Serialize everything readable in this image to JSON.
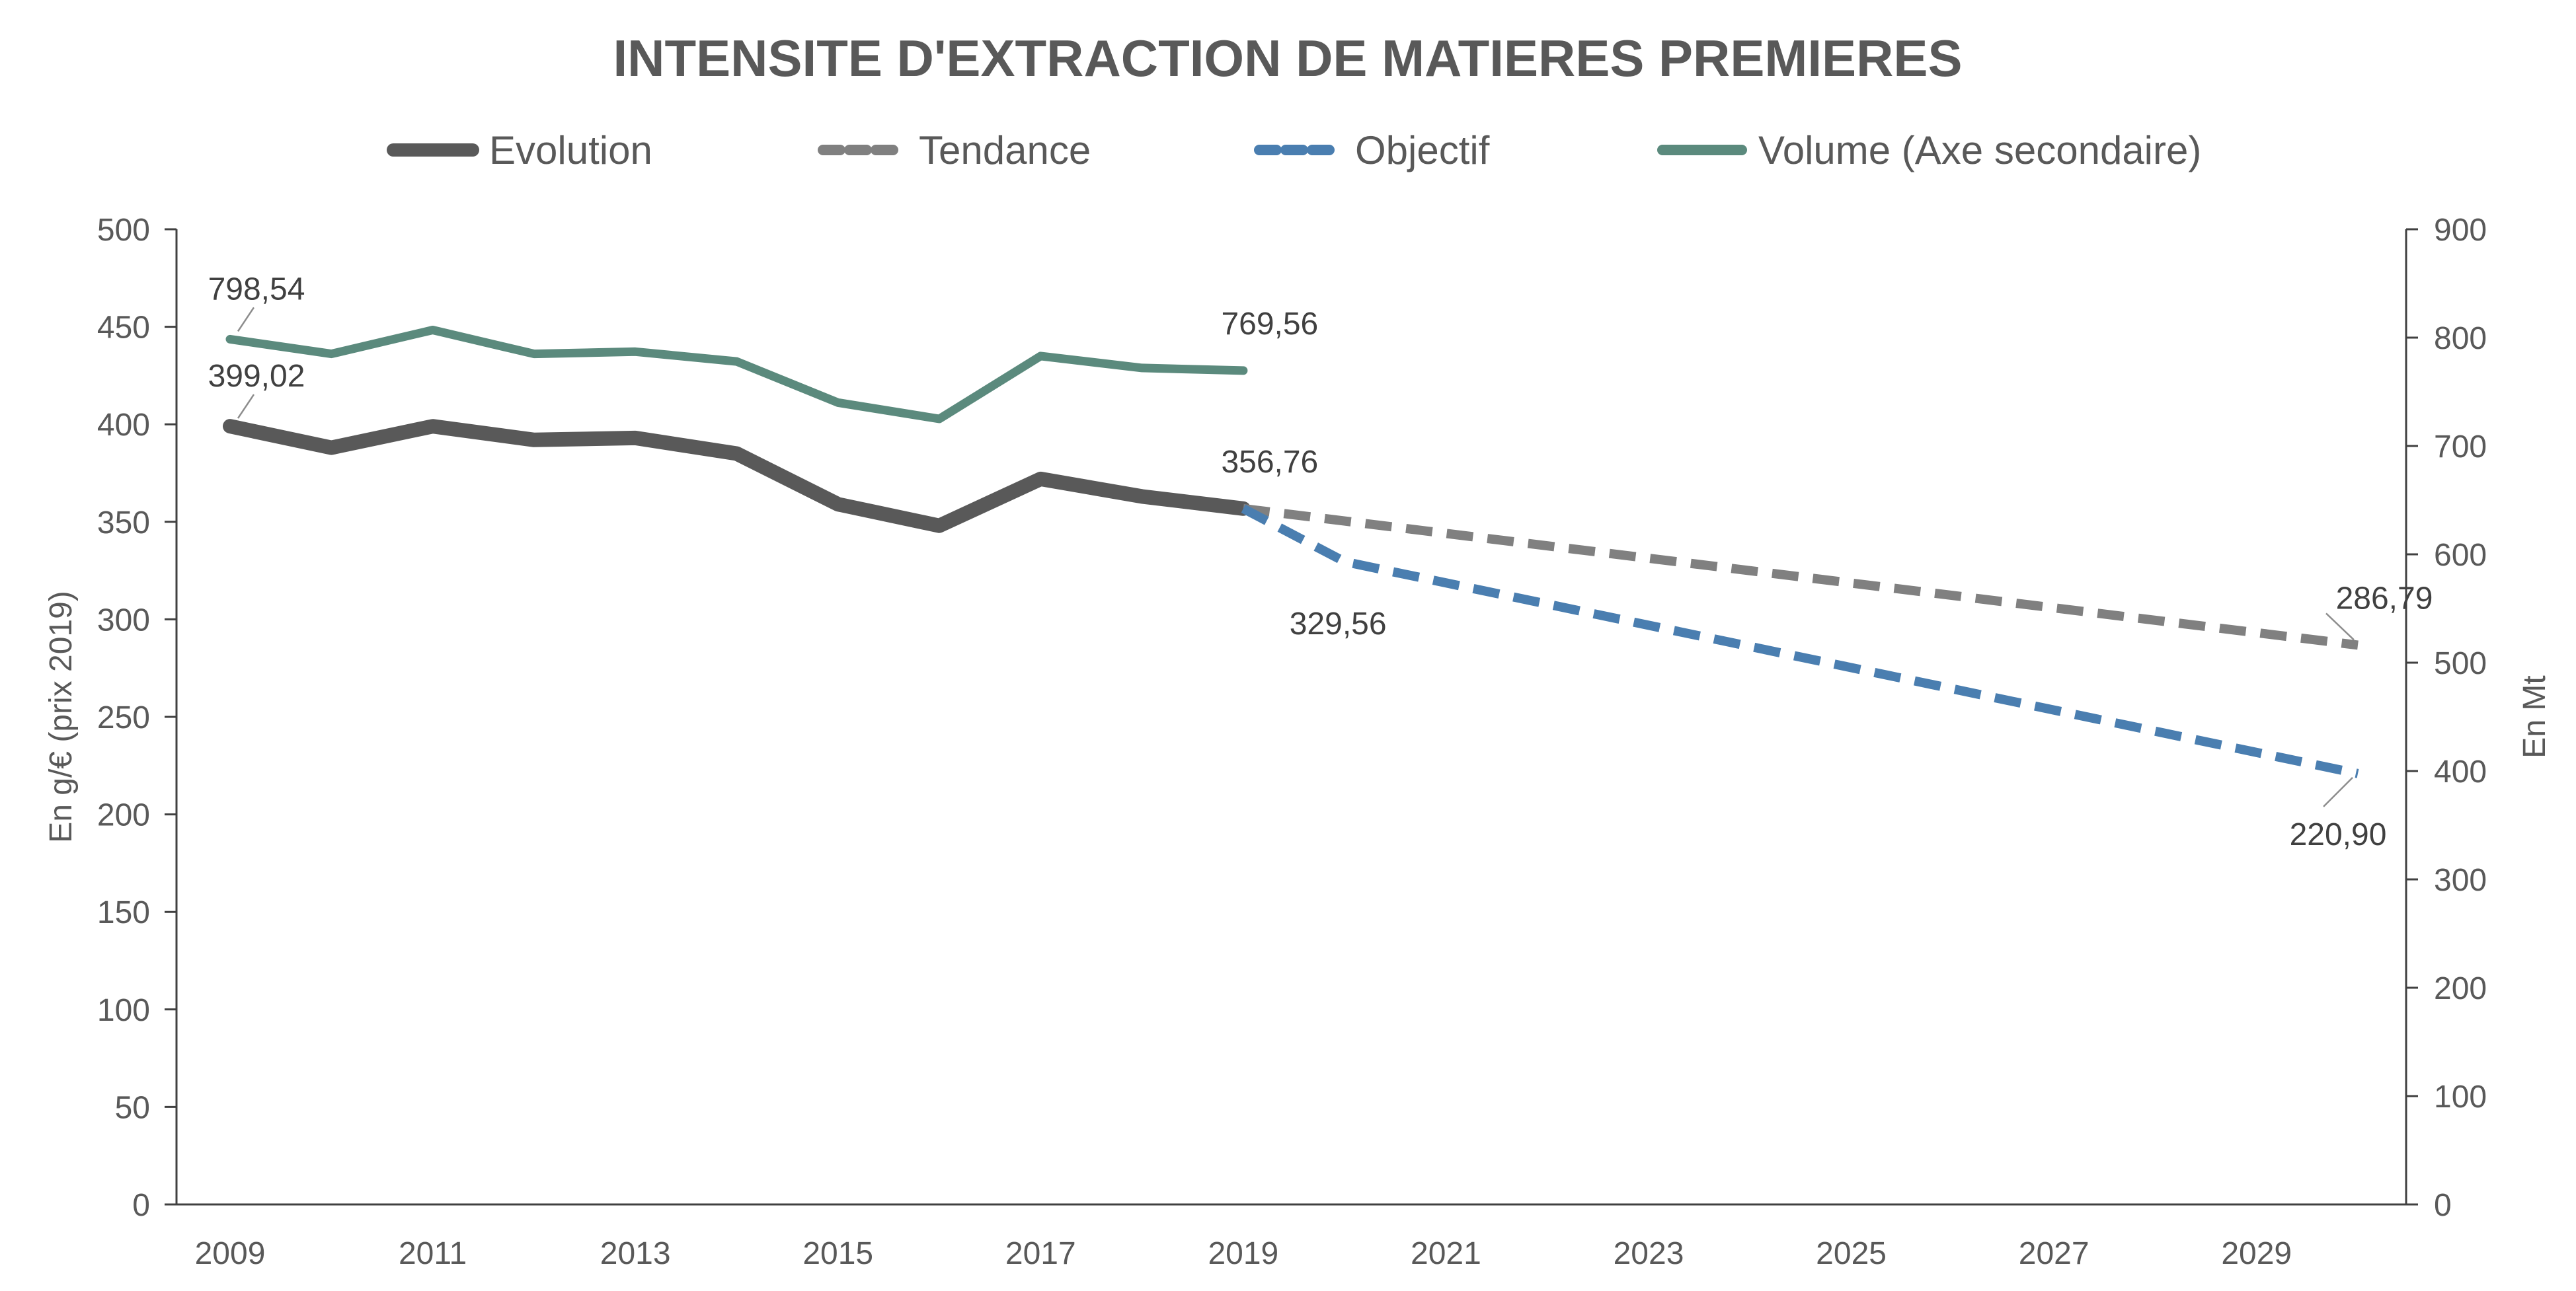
{
  "chart_data": {
    "type": "line",
    "title": "INTENSITE D'EXTRACTION DE MATIERES PREMIERES",
    "ylabel": "En g/€ (prix 2019)",
    "y2label": "En Mt",
    "ylim": [
      0,
      500
    ],
    "y2lim": [
      0,
      900
    ],
    "xlim": [
      2009,
      2030
    ],
    "y_ticks": [
      "0",
      "50",
      "100",
      "150",
      "200",
      "250",
      "300",
      "350",
      "400",
      "450",
      "500"
    ],
    "y2_ticks": [
      "0",
      "100",
      "200",
      "300",
      "400",
      "500",
      "600",
      "700",
      "800",
      "900"
    ],
    "x_ticks": [
      "2009",
      "2011",
      "2013",
      "2015",
      "2017",
      "2019",
      "2021",
      "2023",
      "2025",
      "2027",
      "2029"
    ],
    "grid": false,
    "legend_position": "top",
    "series": [
      {
        "name": "Evolution",
        "axis": "primary",
        "style": "solid",
        "color": "#595959",
        "x": [
          2009,
          2010,
          2011,
          2012,
          2013,
          2014,
          2015,
          2016,
          2017,
          2018,
          2019
        ],
        "y": [
          399.02,
          388,
          399,
          392,
          393,
          385,
          359,
          348,
          372,
          363,
          356.76
        ]
      },
      {
        "name": "Tendance",
        "axis": "primary",
        "style": "dashed",
        "color": "#808080",
        "x": [
          2019,
          2030
        ],
        "y": [
          356.76,
          286.79
        ]
      },
      {
        "name": "Objectif",
        "axis": "primary",
        "style": "dashed",
        "color": "#4a7eb0",
        "x": [
          2019,
          2020,
          2030
        ],
        "y": [
          356.76,
          329.56,
          220.9
        ]
      },
      {
        "name": "Volume (Axe secondaire)",
        "axis": "secondary",
        "style": "solid",
        "color": "#5b8a7d",
        "x": [
          2009,
          2010,
          2011,
          2012,
          2013,
          2014,
          2015,
          2016,
          2017,
          2018,
          2019
        ],
        "y": [
          798.54,
          785,
          807,
          785,
          787,
          778,
          740,
          725,
          783,
          772,
          769.56
        ]
      }
    ],
    "data_labels": [
      {
        "text": "798,54",
        "series": 3,
        "x": 2009,
        "y": 798.54,
        "place": "above",
        "leader": true
      },
      {
        "text": "769,56",
        "series": 3,
        "x": 2019,
        "y": 769.56,
        "place": "above-left",
        "leader": false
      },
      {
        "text": "399,02",
        "series": 0,
        "x": 2009,
        "y": 399.02,
        "place": "above",
        "leader": true
      },
      {
        "text": "356,76",
        "series": 0,
        "x": 2019,
        "y": 356.76,
        "place": "above-left",
        "leader": false
      },
      {
        "text": "329,56",
        "series": 2,
        "x": 2020,
        "y": 329.56,
        "place": "below-right",
        "leader": false
      },
      {
        "text": "286,79",
        "series": 1,
        "x": 2030,
        "y": 286.79,
        "place": "above-left",
        "leader": true
      },
      {
        "text": "220,90",
        "series": 2,
        "x": 2030,
        "y": 220.9,
        "place": "below-left",
        "leader": true
      }
    ]
  }
}
